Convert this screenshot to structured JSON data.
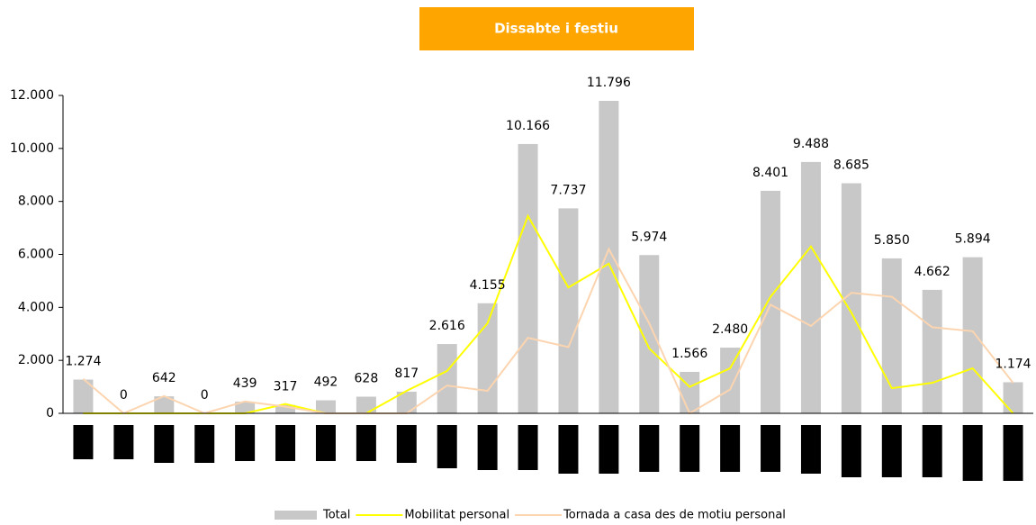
{
  "chart_data": {
    "type": "bar",
    "title": "Dissabte i festiu",
    "categories": [
      null,
      null,
      null,
      null,
      null,
      null,
      null,
      null,
      null,
      null,
      null,
      null,
      null,
      null,
      null,
      null,
      null,
      null,
      null,
      null,
      null,
      null,
      null,
      null
    ],
    "series": [
      {
        "name": "Total",
        "type": "bar",
        "color": "#c8c8c8",
        "values": [
          1274,
          0,
          642,
          0,
          439,
          317,
          492,
          628,
          817,
          2616,
          4155,
          10166,
          7737,
          11796,
          5974,
          1566,
          2480,
          8401,
          9488,
          8685,
          5850,
          4662,
          5894,
          1174
        ],
        "value_labels": [
          "1.274",
          "0",
          "642",
          "0",
          "439",
          "317",
          "492",
          "628",
          "817",
          "2.616",
          "4.155",
          "10.166",
          "7.737",
          "11.796",
          "5.974",
          "1.566",
          "2.480",
          "8.401",
          "9.488",
          "8.685",
          "5.850",
          "4.662",
          "5.894",
          "1.174"
        ]
      },
      {
        "name": "Mobilitat personal",
        "type": "line",
        "color": "#ffff00",
        "values": [
          0,
          0,
          0,
          0,
          0,
          350,
          0,
          0,
          850,
          1600,
          3400,
          7450,
          4750,
          5650,
          2450,
          1000,
          1700,
          4400,
          6300,
          3800,
          950,
          1150,
          1700,
          0
        ]
      },
      {
        "name": "Tornada a casa des de motiu personal",
        "type": "line",
        "color": "#fcd5b0",
        "values": [
          1300,
          0,
          650,
          0,
          450,
          250,
          0,
          0,
          0,
          1050,
          850,
          2850,
          2500,
          6200,
          3400,
          0,
          900,
          4100,
          3300,
          4550,
          4400,
          3250,
          3100,
          1150
        ]
      }
    ],
    "ylim": [
      0,
      12000
    ],
    "yticks": [
      0,
      {
        "value": 2000,
        "label": "2.000"
      },
      {
        "value": 4000,
        "label": "4.000"
      },
      {
        "value": 6000,
        "label": "6.000"
      },
      {
        "value": 8000,
        "label": "8.000"
      },
      {
        "value": 10000,
        "label": "10.000"
      },
      {
        "value": 12000,
        "label": "12.000"
      }
    ],
    "legend": "bottom",
    "title_color": "#ffa500"
  }
}
